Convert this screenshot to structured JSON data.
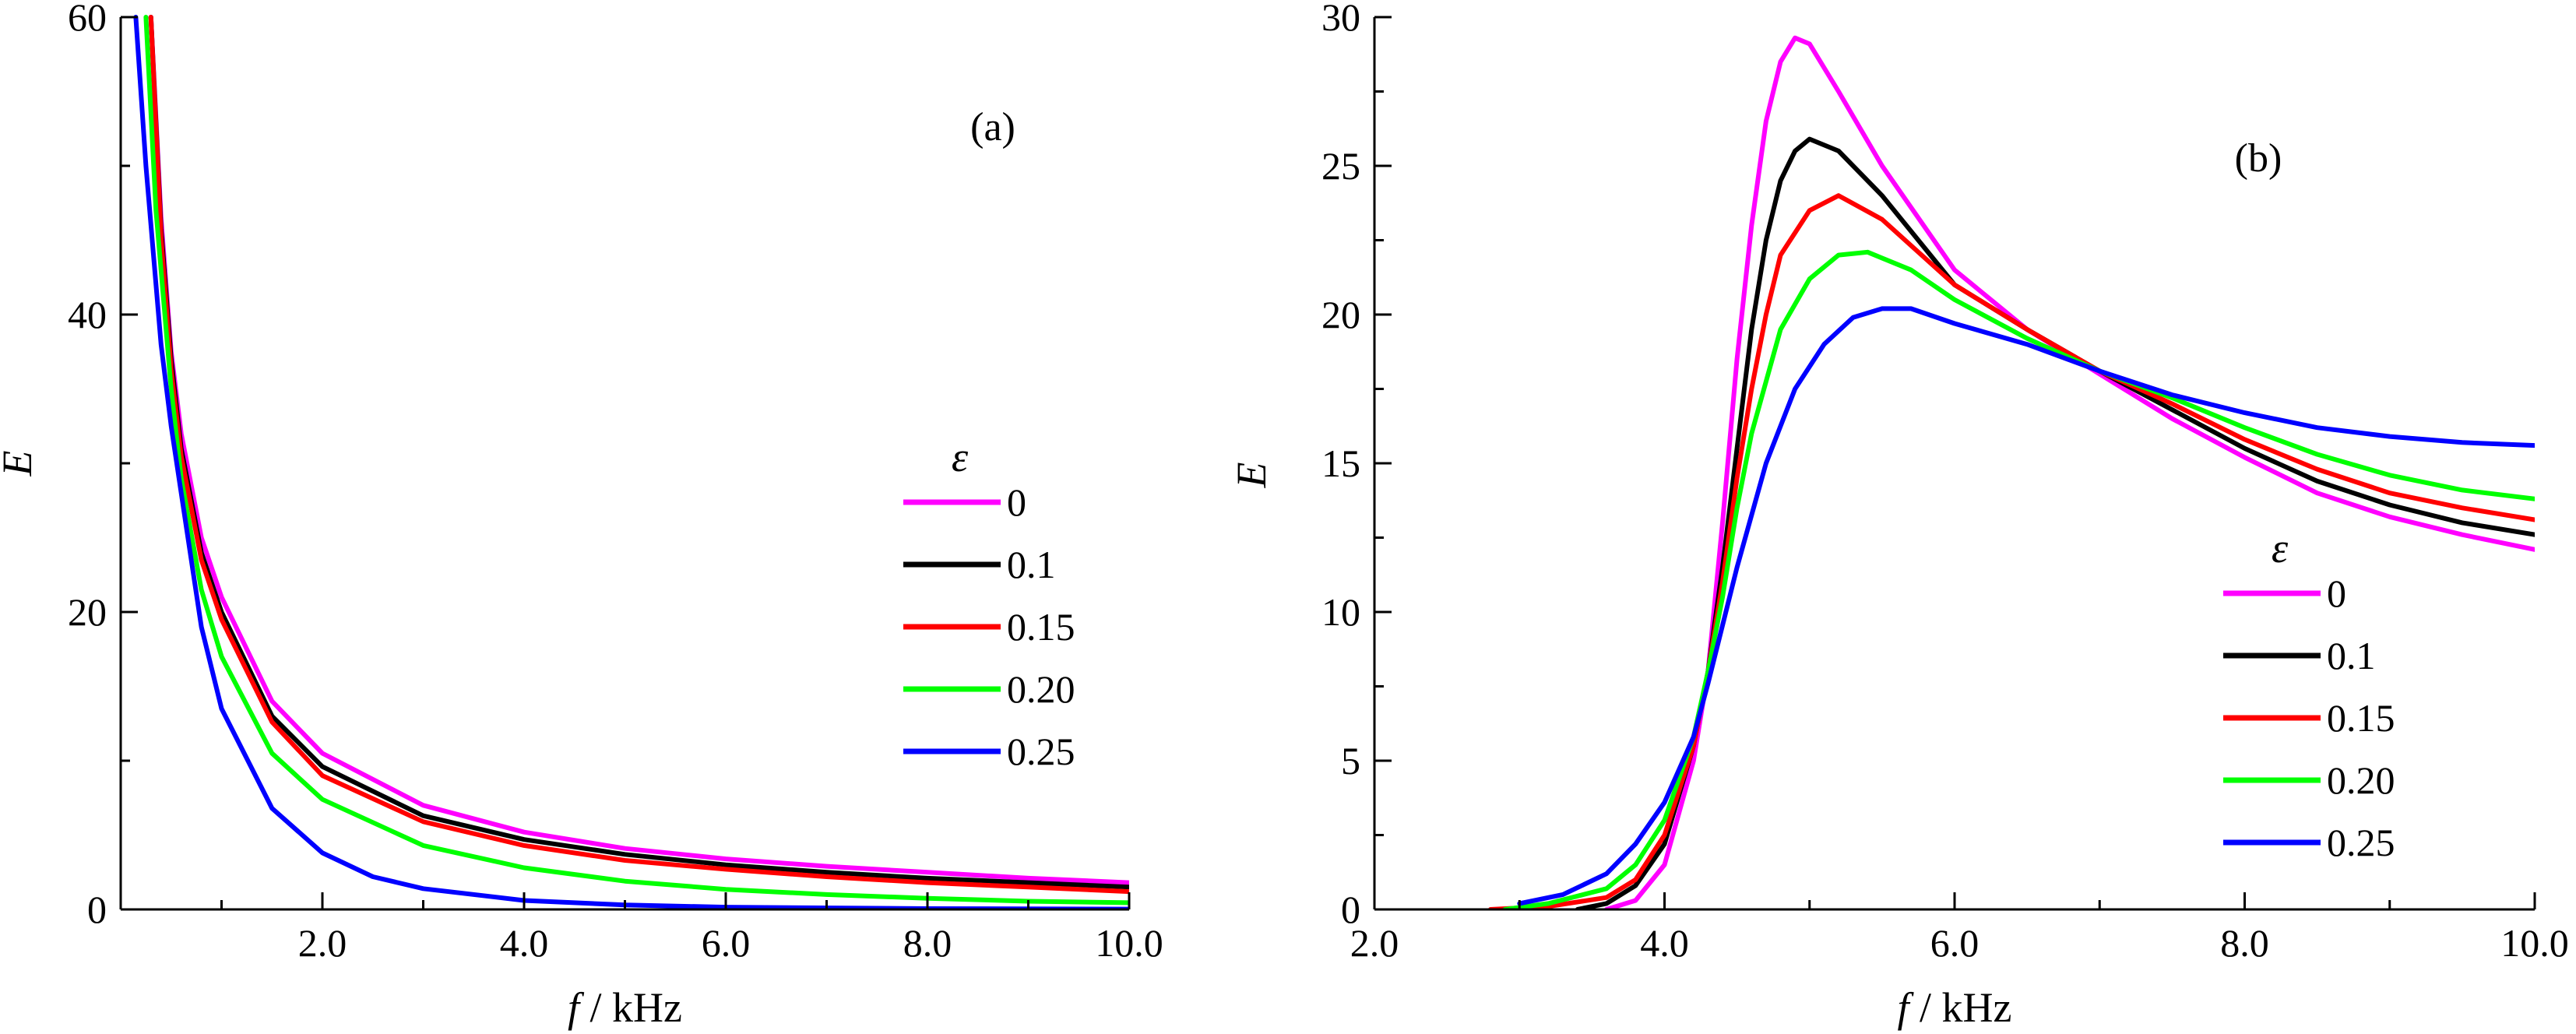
{
  "colors": {
    "magenta": "#ff00ff",
    "black": "#000000",
    "red": "#ff0000",
    "green": "#00ff00",
    "blue": "#0000ff"
  },
  "legend_title": "ε",
  "chart_data": [
    {
      "type": "line",
      "panel_label": "(a)",
      "title": "",
      "xlabel_italic": "f",
      "xlabel_rest": " / kHz",
      "ylabel": "E",
      "xlim": [
        0,
        10
      ],
      "ylim": [
        0,
        60
      ],
      "x_ticks": [
        {
          "value": 2.0,
          "label": "2.0"
        },
        {
          "value": 4.0,
          "label": "4.0"
        },
        {
          "value": 6.0,
          "label": "6.0"
        },
        {
          "value": 8.0,
          "label": "8.0"
        },
        {
          "value": 10.0,
          "label": "10.0"
        }
      ],
      "y_ticks": [
        {
          "value": 0,
          "label": "0"
        },
        {
          "value": 20,
          "label": "20"
        },
        {
          "value": 40,
          "label": "40"
        },
        {
          "value": 60,
          "label": "60"
        }
      ],
      "legend_placement": "right",
      "series": [
        {
          "name": "0",
          "color_key": "magenta",
          "points": [
            [
              0.3,
              60
            ],
            [
              0.4,
              46.5
            ],
            [
              0.5,
              37.5
            ],
            [
              0.6,
              32.0
            ],
            [
              0.8,
              25.0
            ],
            [
              1.0,
              21.0
            ],
            [
              1.5,
              14.0
            ],
            [
              2.0,
              10.5
            ],
            [
              3.0,
              7.0
            ],
            [
              4.0,
              5.2
            ],
            [
              5.0,
              4.1
            ],
            [
              6.0,
              3.4
            ],
            [
              7.0,
              2.9
            ],
            [
              8.0,
              2.5
            ],
            [
              9.0,
              2.1
            ],
            [
              10.0,
              1.8
            ]
          ]
        },
        {
          "name": "0.1",
          "color_key": "black",
          "points": [
            [
              0.3,
              60
            ],
            [
              0.4,
              45.8
            ],
            [
              0.5,
              37.0
            ],
            [
              0.6,
              31.0
            ],
            [
              0.8,
              24.0
            ],
            [
              1.0,
              20.0
            ],
            [
              1.5,
              13.0
            ],
            [
              2.0,
              9.6
            ],
            [
              3.0,
              6.3
            ],
            [
              4.0,
              4.7
            ],
            [
              5.0,
              3.7
            ],
            [
              6.0,
              3.0
            ],
            [
              7.0,
              2.5
            ],
            [
              8.0,
              2.1
            ],
            [
              9.0,
              1.8
            ],
            [
              10.0,
              1.5
            ]
          ]
        },
        {
          "name": "0.15",
          "color_key": "red",
          "points": [
            [
              0.3,
              60
            ],
            [
              0.4,
              45.2
            ],
            [
              0.5,
              36.3
            ],
            [
              0.6,
              30.5
            ],
            [
              0.8,
              23.5
            ],
            [
              1.0,
              19.5
            ],
            [
              1.5,
              12.6
            ],
            [
              2.0,
              9.0
            ],
            [
              3.0,
              5.9
            ],
            [
              4.0,
              4.3
            ],
            [
              5.0,
              3.3
            ],
            [
              6.0,
              2.7
            ],
            [
              7.0,
              2.2
            ],
            [
              8.0,
              1.8
            ],
            [
              9.0,
              1.5
            ],
            [
              10.0,
              1.2
            ]
          ]
        },
        {
          "name": "0.20",
          "color_key": "green",
          "points": [
            [
              0.25,
              60
            ],
            [
              0.35,
              47.0
            ],
            [
              0.5,
              35.0
            ],
            [
              0.6,
              29.0
            ],
            [
              0.8,
              21.5
            ],
            [
              1.0,
              17.0
            ],
            [
              1.5,
              10.5
            ],
            [
              2.0,
              7.4
            ],
            [
              3.0,
              4.3
            ],
            [
              4.0,
              2.8
            ],
            [
              5.0,
              1.9
            ],
            [
              6.0,
              1.35
            ],
            [
              7.0,
              1.0
            ],
            [
              8.0,
              0.75
            ],
            [
              9.0,
              0.55
            ],
            [
              10.0,
              0.45
            ]
          ]
        },
        {
          "name": "0.25",
          "color_key": "blue",
          "points": [
            [
              0.15,
              60
            ],
            [
              0.25,
              50.0
            ],
            [
              0.4,
              38.0
            ],
            [
              0.5,
              32.5
            ],
            [
              0.6,
              28.0
            ],
            [
              0.8,
              19.0
            ],
            [
              1.0,
              13.5
            ],
            [
              1.5,
              6.8
            ],
            [
              2.0,
              3.8
            ],
            [
              2.5,
              2.2
            ],
            [
              3.0,
              1.4
            ],
            [
              4.0,
              0.6
            ],
            [
              5.0,
              0.3
            ],
            [
              6.0,
              0.15
            ],
            [
              8.0,
              0.05
            ],
            [
              10.0,
              0.02
            ]
          ]
        }
      ]
    },
    {
      "type": "line",
      "panel_label": "(b)",
      "title": "",
      "xlabel_italic": "f",
      "xlabel_rest": " / kHz",
      "ylabel": "E",
      "xlim": [
        2,
        10
      ],
      "ylim": [
        0,
        30
      ],
      "x_ticks": [
        {
          "value": 2.0,
          "label": "2.0"
        },
        {
          "value": 4.0,
          "label": "4.0"
        },
        {
          "value": 6.0,
          "label": "6.0"
        },
        {
          "value": 8.0,
          "label": "8.0"
        },
        {
          "value": 10.0,
          "label": "10.0"
        }
      ],
      "y_ticks": [
        {
          "value": 0,
          "label": "0"
        },
        {
          "value": 5,
          "label": "5"
        },
        {
          "value": 10,
          "label": "10"
        },
        {
          "value": 15,
          "label": "15"
        },
        {
          "value": 20,
          "label": "20"
        },
        {
          "value": 25,
          "label": "25"
        },
        {
          "value": 30,
          "label": "30"
        }
      ],
      "legend_placement": "center-right",
      "series": [
        {
          "name": "0",
          "color_key": "magenta",
          "points": [
            [
              3.6,
              0
            ],
            [
              3.8,
              0.3
            ],
            [
              4.0,
              1.5
            ],
            [
              4.2,
              5.0
            ],
            [
              4.3,
              8.0
            ],
            [
              4.4,
              13.0
            ],
            [
              4.5,
              18.5
            ],
            [
              4.6,
              23.0
            ],
            [
              4.7,
              26.5
            ],
            [
              4.8,
              28.5
            ],
            [
              4.9,
              29.3
            ],
            [
              5.0,
              29.1
            ],
            [
              5.2,
              27.5
            ],
            [
              5.5,
              25.0
            ],
            [
              6.0,
              21.5
            ],
            [
              6.5,
              19.5
            ],
            [
              7.0,
              18.0
            ],
            [
              7.5,
              16.5
            ],
            [
              8.0,
              15.2
            ],
            [
              8.5,
              14.0
            ],
            [
              9.0,
              13.2
            ],
            [
              9.5,
              12.6
            ],
            [
              10.0,
              12.1
            ]
          ]
        },
        {
          "name": "0.1",
          "color_key": "black",
          "points": [
            [
              3.4,
              0
            ],
            [
              3.6,
              0.2
            ],
            [
              3.8,
              0.8
            ],
            [
              4.0,
              2.2
            ],
            [
              4.2,
              5.5
            ],
            [
              4.3,
              8.0
            ],
            [
              4.4,
              11.5
            ],
            [
              4.5,
              15.5
            ],
            [
              4.6,
              19.5
            ],
            [
              4.7,
              22.5
            ],
            [
              4.8,
              24.5
            ],
            [
              4.9,
              25.5
            ],
            [
              5.0,
              25.9
            ],
            [
              5.2,
              25.5
            ],
            [
              5.5,
              24.0
            ],
            [
              6.0,
              21.0
            ],
            [
              6.5,
              19.5
            ],
            [
              7.0,
              18.1
            ],
            [
              7.5,
              16.8
            ],
            [
              8.0,
              15.5
            ],
            [
              8.5,
              14.4
            ],
            [
              9.0,
              13.6
            ],
            [
              9.5,
              13.0
            ],
            [
              10.0,
              12.6
            ]
          ]
        },
        {
          "name": "0.15",
          "color_key": "red",
          "points": [
            [
              2.8,
              0
            ],
            [
              3.2,
              0.1
            ],
            [
              3.6,
              0.4
            ],
            [
              3.8,
              1.0
            ],
            [
              4.0,
              2.5
            ],
            [
              4.2,
              5.5
            ],
            [
              4.3,
              8.0
            ],
            [
              4.4,
              11.0
            ],
            [
              4.5,
              14.5
            ],
            [
              4.6,
              17.5
            ],
            [
              4.7,
              20.0
            ],
            [
              4.8,
              22.0
            ],
            [
              5.0,
              23.5
            ],
            [
              5.2,
              24.0
            ],
            [
              5.5,
              23.2
            ],
            [
              6.0,
              21.0
            ],
            [
              6.5,
              19.5
            ],
            [
              7.0,
              18.1
            ],
            [
              7.5,
              17.0
            ],
            [
              8.0,
              15.8
            ],
            [
              8.5,
              14.8
            ],
            [
              9.0,
              14.0
            ],
            [
              9.5,
              13.5
            ],
            [
              10.0,
              13.1
            ]
          ]
        },
        {
          "name": "0.20",
          "color_key": "green",
          "points": [
            [
              2.9,
              0
            ],
            [
              3.2,
              0.2
            ],
            [
              3.6,
              0.7
            ],
            [
              3.8,
              1.5
            ],
            [
              4.0,
              3.0
            ],
            [
              4.2,
              5.8
            ],
            [
              4.3,
              8.0
            ],
            [
              4.4,
              10.5
            ],
            [
              4.5,
              13.5
            ],
            [
              4.6,
              16.0
            ],
            [
              4.8,
              19.5
            ],
            [
              5.0,
              21.2
            ],
            [
              5.2,
              22.0
            ],
            [
              5.4,
              22.1
            ],
            [
              5.7,
              21.5
            ],
            [
              6.0,
              20.5
            ],
            [
              6.5,
              19.2
            ],
            [
              7.0,
              18.1
            ],
            [
              7.5,
              17.2
            ],
            [
              8.0,
              16.2
            ],
            [
              8.5,
              15.3
            ],
            [
              9.0,
              14.6
            ],
            [
              9.5,
              14.1
            ],
            [
              10.0,
              13.8
            ]
          ]
        },
        {
          "name": "0.25",
          "color_key": "blue",
          "points": [
            [
              3.0,
              0.2
            ],
            [
              3.3,
              0.5
            ],
            [
              3.6,
              1.2
            ],
            [
              3.8,
              2.2
            ],
            [
              4.0,
              3.6
            ],
            [
              4.2,
              5.8
            ],
            [
              4.3,
              7.6
            ],
            [
              4.5,
              11.5
            ],
            [
              4.7,
              15.0
            ],
            [
              4.9,
              17.5
            ],
            [
              5.1,
              19.0
            ],
            [
              5.3,
              19.9
            ],
            [
              5.5,
              20.2
            ],
            [
              5.7,
              20.2
            ],
            [
              6.0,
              19.7
            ],
            [
              6.5,
              19.0
            ],
            [
              7.0,
              18.1
            ],
            [
              7.5,
              17.3
            ],
            [
              8.0,
              16.7
            ],
            [
              8.5,
              16.2
            ],
            [
              9.0,
              15.9
            ],
            [
              9.5,
              15.7
            ],
            [
              10.0,
              15.6
            ]
          ]
        }
      ]
    }
  ]
}
